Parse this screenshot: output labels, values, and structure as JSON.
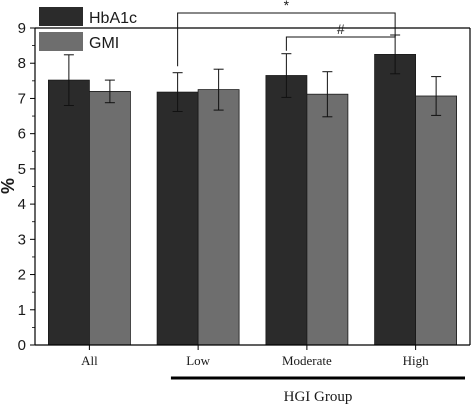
{
  "chart_data": {
    "type": "bar",
    "categories": [
      "All",
      "Low",
      "Moderate",
      "High"
    ],
    "series": [
      {
        "name": "HbA1c",
        "color": "#2b2b2b",
        "values": [
          7.52,
          7.18,
          7.65,
          8.25
        ],
        "errors": [
          0.72,
          0.55,
          0.62,
          0.55
        ]
      },
      {
        "name": "GMI",
        "color": "#6e6e6e",
        "values": [
          7.2,
          7.25,
          7.12,
          7.07
        ],
        "errors": [
          0.32,
          0.58,
          0.64,
          0.55
        ]
      }
    ],
    "ylabel": "%",
    "ylim": [
      0,
      9
    ],
    "yticks": [
      0,
      1,
      2,
      3,
      4,
      5,
      6,
      7,
      8,
      9
    ],
    "group_label": "HGI Group",
    "group_members": [
      "Low",
      "Moderate",
      "High"
    ],
    "legend_position": "top-left",
    "grid": false,
    "significance": [
      {
        "label": "*",
        "from": "Low",
        "to": "High"
      },
      {
        "label": "#",
        "from": "Moderate",
        "to": "High"
      }
    ]
  }
}
